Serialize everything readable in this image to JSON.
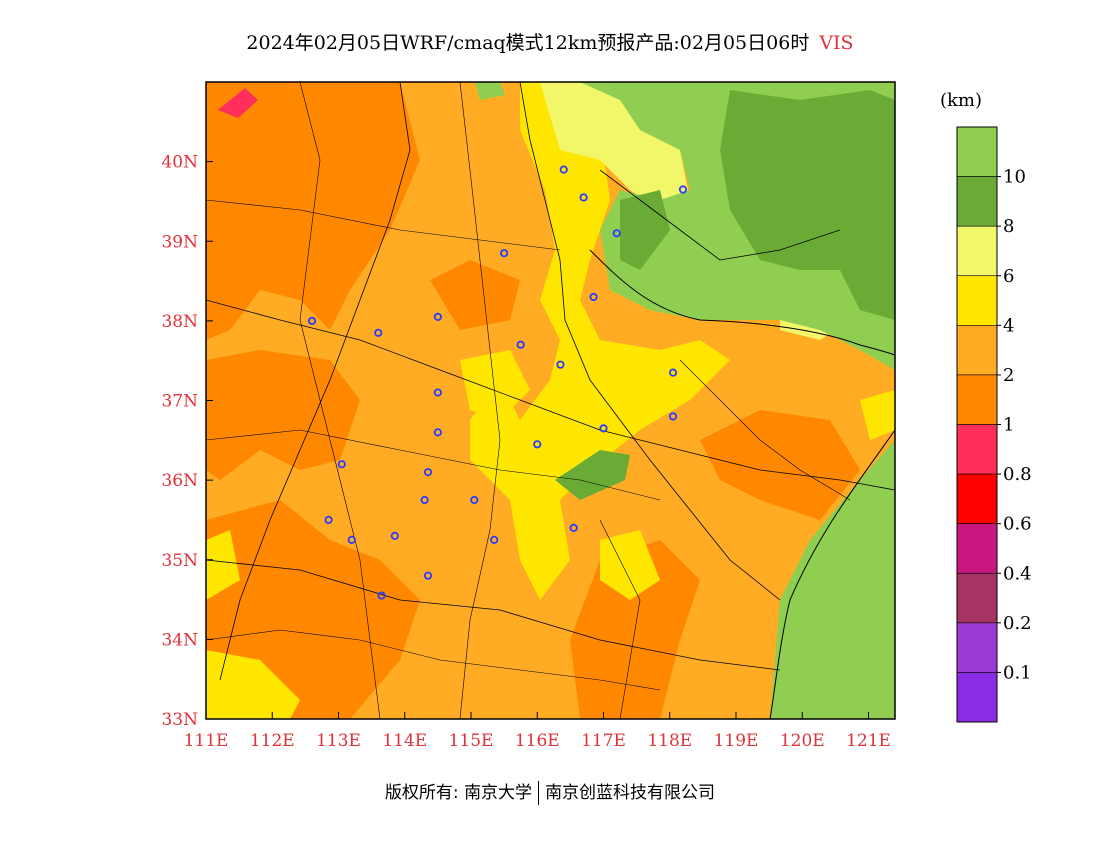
{
  "header": {
    "title": "2024年02月05日WRF/cmaq模式12km预报产品:02月05日06时",
    "variable": "VIS"
  },
  "map": {
    "lon_range": [
      111,
      121.4
    ],
    "lat_range": [
      33,
      41
    ],
    "x_ticks": [
      "111E",
      "112E",
      "113E",
      "114E",
      "115E",
      "116E",
      "117E",
      "118E",
      "119E",
      "120E",
      "121E"
    ],
    "y_ticks": [
      "33N",
      "34N",
      "35N",
      "36N",
      "37N",
      "38N",
      "39N",
      "40N"
    ],
    "city_markers": [
      [
        116.4,
        39.9
      ],
      [
        116.7,
        39.55
      ],
      [
        117.2,
        39.1
      ],
      [
        118.2,
        39.65
      ],
      [
        115.5,
        38.85
      ],
      [
        116.85,
        38.3
      ],
      [
        112.6,
        38.0
      ],
      [
        113.6,
        37.85
      ],
      [
        114.5,
        38.05
      ],
      [
        115.75,
        37.7
      ],
      [
        116.35,
        37.45
      ],
      [
        118.05,
        37.35
      ],
      [
        114.5,
        37.1
      ],
      [
        114.5,
        36.6
      ],
      [
        116.0,
        36.45
      ],
      [
        117.0,
        36.65
      ],
      [
        118.05,
        36.8
      ],
      [
        113.05,
        36.2
      ],
      [
        114.35,
        36.1
      ],
      [
        114.3,
        35.75
      ],
      [
        115.05,
        35.75
      ],
      [
        112.85,
        35.5
      ],
      [
        113.2,
        35.25
      ],
      [
        113.85,
        35.3
      ],
      [
        115.35,
        35.25
      ],
      [
        116.55,
        35.4
      ],
      [
        114.35,
        34.8
      ],
      [
        113.65,
        34.55
      ]
    ]
  },
  "legend": {
    "unit": "(km)",
    "labels": [
      "10",
      "8",
      "6",
      "4",
      "2",
      "1",
      "0.8",
      "0.6",
      "0.4",
      "0.2",
      "0.1"
    ],
    "colors": [
      "#8fce50",
      "#6aab35",
      "#f2f76a",
      "#ffe600",
      "#ffab24",
      "#ff8800",
      "#ff2e5a",
      "#ff0000",
      "#c8177e",
      "#a63462",
      "#9a3ad2",
      "#8a2ee6"
    ]
  },
  "footer": {
    "copyright_label": "版权所有:",
    "owner1": "南京大学",
    "owner2": "南京创蓝科技有限公司"
  }
}
